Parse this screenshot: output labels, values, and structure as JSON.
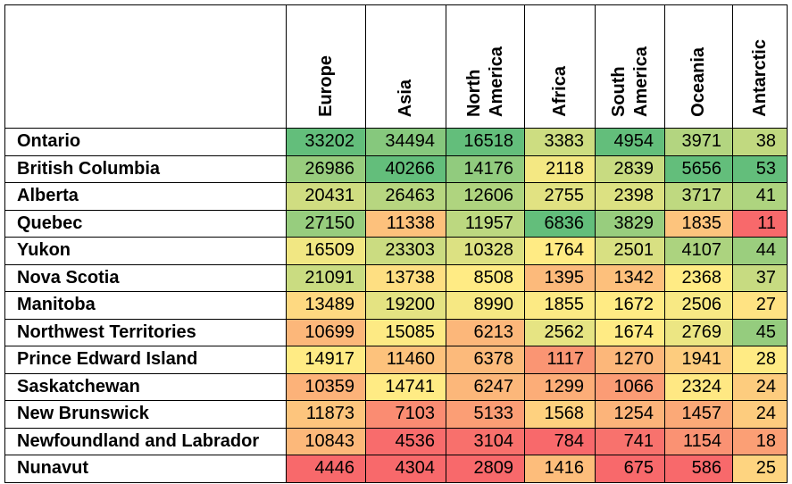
{
  "chart_data": {
    "type": "heatmap",
    "columns": [
      "Europe",
      "Asia",
      "North America",
      "Africa",
      "South America",
      "Oceania",
      "Antarctic"
    ],
    "rows": [
      {
        "name": "Ontario",
        "values": [
          33202,
          34494,
          16518,
          3383,
          4954,
          3971,
          38
        ]
      },
      {
        "name": "British Columbia",
        "values": [
          26986,
          40266,
          14176,
          2118,
          2839,
          5656,
          53
        ]
      },
      {
        "name": "Alberta",
        "values": [
          20431,
          26463,
          12606,
          2755,
          2398,
          3717,
          41
        ]
      },
      {
        "name": "Quebec",
        "values": [
          27150,
          11338,
          11957,
          6836,
          3829,
          1835,
          11
        ]
      },
      {
        "name": "Yukon",
        "values": [
          16509,
          23303,
          10328,
          1764,
          2501,
          4107,
          44
        ]
      },
      {
        "name": "Nova Scotia",
        "values": [
          21091,
          13738,
          8508,
          1395,
          1342,
          2368,
          37
        ]
      },
      {
        "name": "Manitoba",
        "values": [
          13489,
          19200,
          8990,
          1855,
          1672,
          2506,
          27
        ]
      },
      {
        "name": "Northwest Territories",
        "values": [
          10699,
          15085,
          6213,
          2562,
          1674,
          2769,
          45
        ]
      },
      {
        "name": "Prince Edward Island",
        "values": [
          14917,
          11460,
          6378,
          1117,
          1270,
          1941,
          28
        ]
      },
      {
        "name": "Saskatchewan",
        "values": [
          10359,
          14741,
          6247,
          1299,
          1066,
          2324,
          24
        ]
      },
      {
        "name": "New Brunswick",
        "values": [
          11873,
          7103,
          5133,
          1568,
          1254,
          1457,
          24
        ]
      },
      {
        "name": "Newfoundland and Labrador",
        "values": [
          10843,
          4536,
          3104,
          784,
          741,
          1154,
          18
        ]
      },
      {
        "name": "Nunavut",
        "values": [
          4446,
          4304,
          2809,
          1416,
          675,
          586,
          25
        ]
      }
    ],
    "color_scale": {
      "low": "#F8696B",
      "mid": "#FFEB84",
      "high": "#63BE7B"
    },
    "color_scale_scope": "per-column"
  }
}
